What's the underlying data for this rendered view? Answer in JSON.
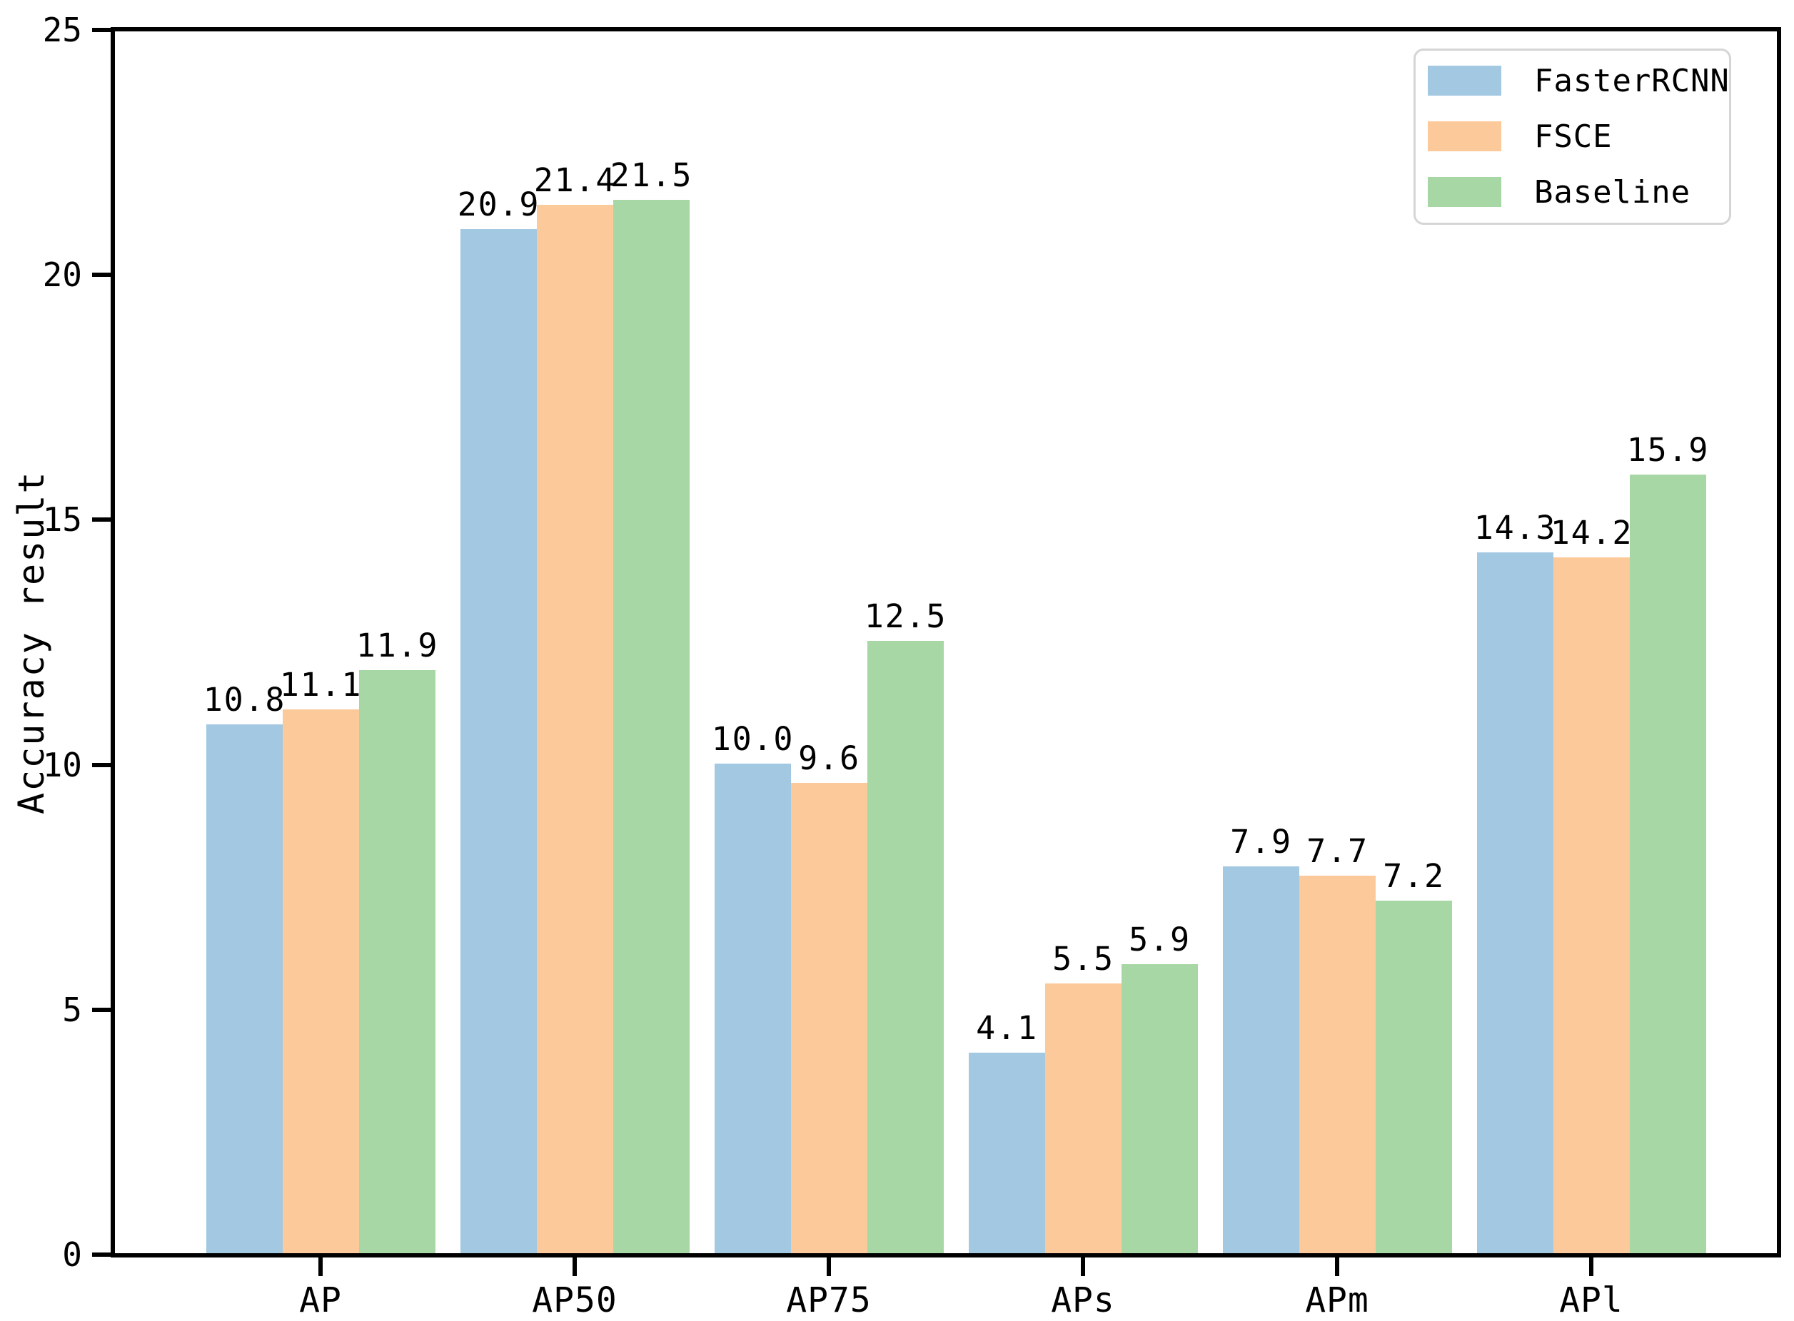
{
  "chart_data": {
    "type": "bar",
    "title": "",
    "xlabel": "",
    "ylabel": "Accuracy result",
    "categories": [
      "AP",
      "AP50",
      "AP75",
      "APs",
      "APm",
      "APl"
    ],
    "series": [
      {
        "name": "FasterRCNN",
        "color": "#A2C8E2",
        "values": [
          10.8,
          20.9,
          10.0,
          4.1,
          7.9,
          14.3
        ]
      },
      {
        "name": "FSCE",
        "color": "#FCC99B",
        "values": [
          11.1,
          21.4,
          9.6,
          5.5,
          7.7,
          14.2
        ]
      },
      {
        "name": "Baseline",
        "color": "#A7D7A4",
        "values": [
          11.9,
          21.5,
          12.5,
          5.9,
          7.2,
          15.9
        ]
      }
    ],
    "ylim": [
      0,
      25
    ],
    "yticks": [
      0,
      5,
      10,
      15,
      20,
      25
    ],
    "grid": false,
    "legend_position": "upper right",
    "bar_value_labels": true,
    "axis_color": "#000000",
    "legend_border_color": "#d5d5d5"
  }
}
